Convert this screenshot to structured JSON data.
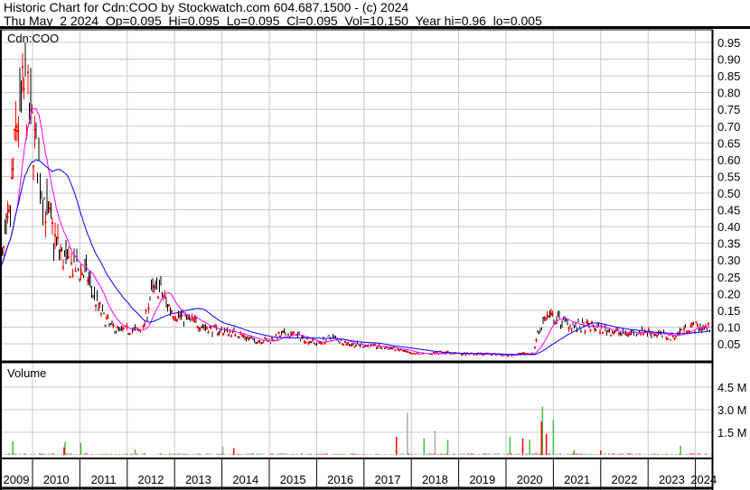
{
  "header": {
    "title": "Historic Chart for Cdn:COO by Stockwatch.com 604.687.1500 - (c) 2024",
    "quote_line": "Thu May  2 2024  Op=0.095  Hi=0.095  Lo=0.095  Cl=0.095  Vol=10,150  Year hi=0.96  lo=0.005"
  },
  "colors": {
    "up": "#000000",
    "down": "#ff0000",
    "ma_short": "#ff00ff",
    "ma_long": "#0000ff",
    "vol_up": "#44bb44",
    "vol_down": "#ff0000",
    "vol_flat": "#aaaaaa",
    "grid": "#c8c8c8"
  },
  "chart_data": [
    {
      "type": "line",
      "title": "Cdn:COO",
      "ylim": [
        0,
        1.0
      ],
      "y_ticks": [
        "0.95",
        "0.90",
        "0.85",
        "0.80",
        "0.75",
        "0.70",
        "0.65",
        "0.60",
        "0.55",
        "0.50",
        "0.45",
        "0.40",
        "0.35",
        "0.30",
        "0.25",
        "0.20",
        "0.15",
        "0.10",
        "0.05"
      ],
      "grid": true,
      "series": [
        {
          "x": [
            "2009-05",
            "2009-07",
            "2009-09",
            "2009-11",
            "2010-01",
            "2010-03",
            "2010-05",
            "2010-07",
            "2010-09",
            "2010-11",
            "2011-01",
            "2011-03",
            "2011-05",
            "2011-07",
            "2011-09",
            "2011-11",
            "2012-01",
            "2012-03",
            "2012-05",
            "2012-07",
            "2012-09",
            "2012-11",
            "2013-01",
            "2013-03",
            "2013-05",
            "2013-07",
            "2013-09",
            "2013-11",
            "2014-01",
            "2014-05",
            "2014-09",
            "2015-01",
            "2015-05",
            "2015-09",
            "2016-01",
            "2016-05",
            "2016-09",
            "2017-01",
            "2017-05",
            "2017-09",
            "2018-01",
            "2018-05",
            "2018-09",
            "2019-01",
            "2019-05",
            "2019-09",
            "2020-01",
            "2020-05",
            "2020-08",
            "2020-09",
            "2020-11",
            "2021-03",
            "2021-07",
            "2021-11",
            "2022-03",
            "2022-07",
            "2022-11",
            "2023-03",
            "2023-07",
            "2023-11",
            "2024-03",
            "2024-05"
          ],
          "y": [
            0.28,
            0.4,
            0.7,
            0.8,
            0.68,
            0.55,
            0.42,
            0.35,
            0.3,
            0.28,
            0.27,
            0.25,
            0.18,
            0.13,
            0.1,
            0.09,
            0.09,
            0.09,
            0.09,
            0.2,
            0.22,
            0.17,
            0.14,
            0.13,
            0.12,
            0.11,
            0.1,
            0.09,
            0.09,
            0.08,
            0.06,
            0.06,
            0.08,
            0.07,
            0.05,
            0.07,
            0.05,
            0.045,
            0.04,
            0.035,
            0.02,
            0.02,
            0.025,
            0.02,
            0.02,
            0.02,
            0.015,
            0.02,
            0.02,
            0.08,
            0.13,
            0.12,
            0.1,
            0.1,
            0.09,
            0.08,
            0.09,
            0.08,
            0.07,
            0.1,
            0.1,
            0.095
          ]
        }
      ]
    },
    {
      "type": "bar",
      "title": "Volume",
      "ylim": [
        0,
        6.0
      ],
      "y_ticks": [
        "4.5 M",
        "3.0 M",
        "1.5 M"
      ],
      "spikes": [
        {
          "x": "2009-08",
          "v": 0.9,
          "dir": "up"
        },
        {
          "x": "2010-09",
          "v": 0.85,
          "dir": "up"
        },
        {
          "x": "2010-09",
          "v": 0.5,
          "dir": "down"
        },
        {
          "x": "2011-01",
          "v": 0.8,
          "dir": "up"
        },
        {
          "x": "2012-03",
          "v": 0.35,
          "dir": "up"
        },
        {
          "x": "2014-01",
          "v": 0.55,
          "dir": "flat"
        },
        {
          "x": "2014-04",
          "v": 0.45,
          "dir": "down"
        },
        {
          "x": "2017-09",
          "v": 1.2,
          "dir": "down"
        },
        {
          "x": "2017-12",
          "v": 2.8,
          "dir": "flat"
        },
        {
          "x": "2018-04",
          "v": 1.1,
          "dir": "up"
        },
        {
          "x": "2018-07",
          "v": 1.6,
          "dir": "flat"
        },
        {
          "x": "2018-10",
          "v": 1.0,
          "dir": "up"
        },
        {
          "x": "2020-02",
          "v": 1.2,
          "dir": "up"
        },
        {
          "x": "2020-05",
          "v": 1.1,
          "dir": "down"
        },
        {
          "x": "2020-07",
          "v": 1.0,
          "dir": "up"
        },
        {
          "x": "2020-10",
          "v": 3.2,
          "dir": "up"
        },
        {
          "x": "2020-10",
          "v": 2.2,
          "dir": "down"
        },
        {
          "x": "2020-11",
          "v": 1.4,
          "dir": "down"
        },
        {
          "x": "2021-01",
          "v": 2.3,
          "dir": "up"
        },
        {
          "x": "2021-06",
          "v": 0.3,
          "dir": "up"
        },
        {
          "x": "2022-01",
          "v": 0.3,
          "dir": "down"
        },
        {
          "x": "2023-09",
          "v": 0.6,
          "dir": "up"
        }
      ]
    }
  ],
  "x_axis": {
    "labels": [
      "2009",
      "2010",
      "2011",
      "2012",
      "2013",
      "2014",
      "2015",
      "2016",
      "2017",
      "2018",
      "2019",
      "2020",
      "2021",
      "2022",
      "2023",
      "2024"
    ]
  }
}
